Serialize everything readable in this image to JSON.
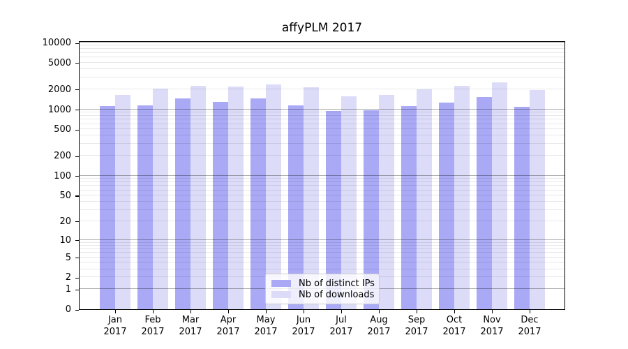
{
  "title": "affyPLM 2017",
  "chart_data": {
    "type": "bar",
    "title": "affyPLM 2017",
    "categories": [
      "Jan 2017",
      "Feb 2017",
      "Mar 2017",
      "Apr 2017",
      "May 2017",
      "Jun 2017",
      "Jul 2017",
      "Aug 2017",
      "Sep 2017",
      "Oct 2017",
      "Nov 2017",
      "Dec 2017"
    ],
    "series": [
      {
        "name": "Nb of distinct IPs",
        "color": "#a9a9f6",
        "values": [
          1110,
          1130,
          1440,
          1300,
          1440,
          1150,
          940,
          965,
          1110,
          1250,
          1510,
          1080
        ]
      },
      {
        "name": "Nb of downloads",
        "color": "#dcdcf8",
        "values": [
          1640,
          2050,
          2240,
          2170,
          2350,
          2150,
          1550,
          1650,
          1990,
          2230,
          2530,
          1950
        ]
      }
    ],
    "xlabel": "",
    "ylabel": "",
    "yscale": "log10(x+1)",
    "yticks": [
      0,
      1,
      2,
      5,
      10,
      20,
      50,
      100,
      200,
      500,
      1000,
      2000,
      5000,
      10000
    ],
    "ylim": [
      0,
      10500
    ],
    "grid": "horizontal major+minor",
    "legend_position": "inside bottom-center"
  },
  "legend": {
    "items": [
      {
        "label": "Nb of distinct IPs"
      },
      {
        "label": "Nb of downloads"
      }
    ]
  }
}
